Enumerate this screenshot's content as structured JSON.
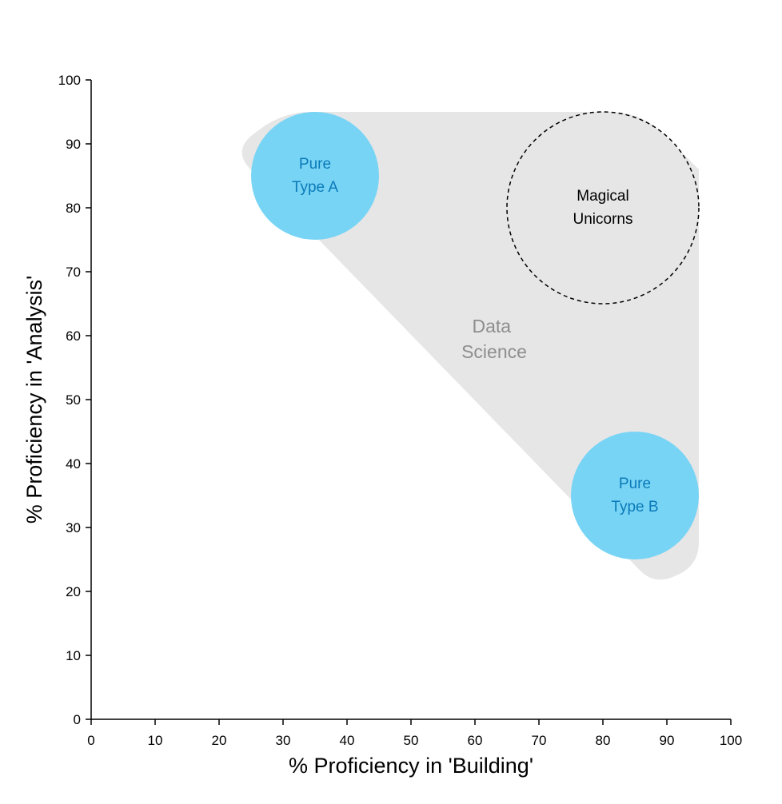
{
  "chart_data": {
    "type": "scatter",
    "title": "",
    "xlabel": "% Proficiency in 'Building'",
    "ylabel": "% Proficiency in 'Analysis'",
    "xlim": [
      0,
      100
    ],
    "ylim": [
      0,
      100
    ],
    "x_ticks": [
      0,
      10,
      20,
      30,
      40,
      50,
      60,
      70,
      80,
      90,
      100
    ],
    "y_ticks": [
      0,
      10,
      20,
      30,
      40,
      50,
      60,
      70,
      80,
      90,
      100
    ],
    "grid": false,
    "region": {
      "label_lines": [
        "Data",
        "Science"
      ],
      "label_position": [
        63,
        59.5
      ],
      "vertices": [
        [
          22,
          89
        ],
        [
          88,
          21
        ],
        [
          95,
          24
        ],
        [
          95,
          86
        ],
        [
          86,
          95
        ],
        [
          30,
          95
        ]
      ],
      "color": "#e6e6e6"
    },
    "circles": [
      {
        "label_lines": [
          "Pure",
          "Type A"
        ],
        "x": 35,
        "y": 85,
        "r": 10,
        "fill": "#78d4f5",
        "text_color": "#0a7ab8",
        "dashed": false
      },
      {
        "label_lines": [
          "Pure",
          "Type B"
        ],
        "x": 85,
        "y": 35,
        "r": 10,
        "fill": "#78d4f5",
        "text_color": "#0a7ab8",
        "dashed": false
      },
      {
        "label_lines": [
          "Magical",
          "Unicorns"
        ],
        "x": 80,
        "y": 80,
        "r": 15,
        "fill": "none",
        "text_color": "#000000",
        "dashed": true
      }
    ]
  }
}
